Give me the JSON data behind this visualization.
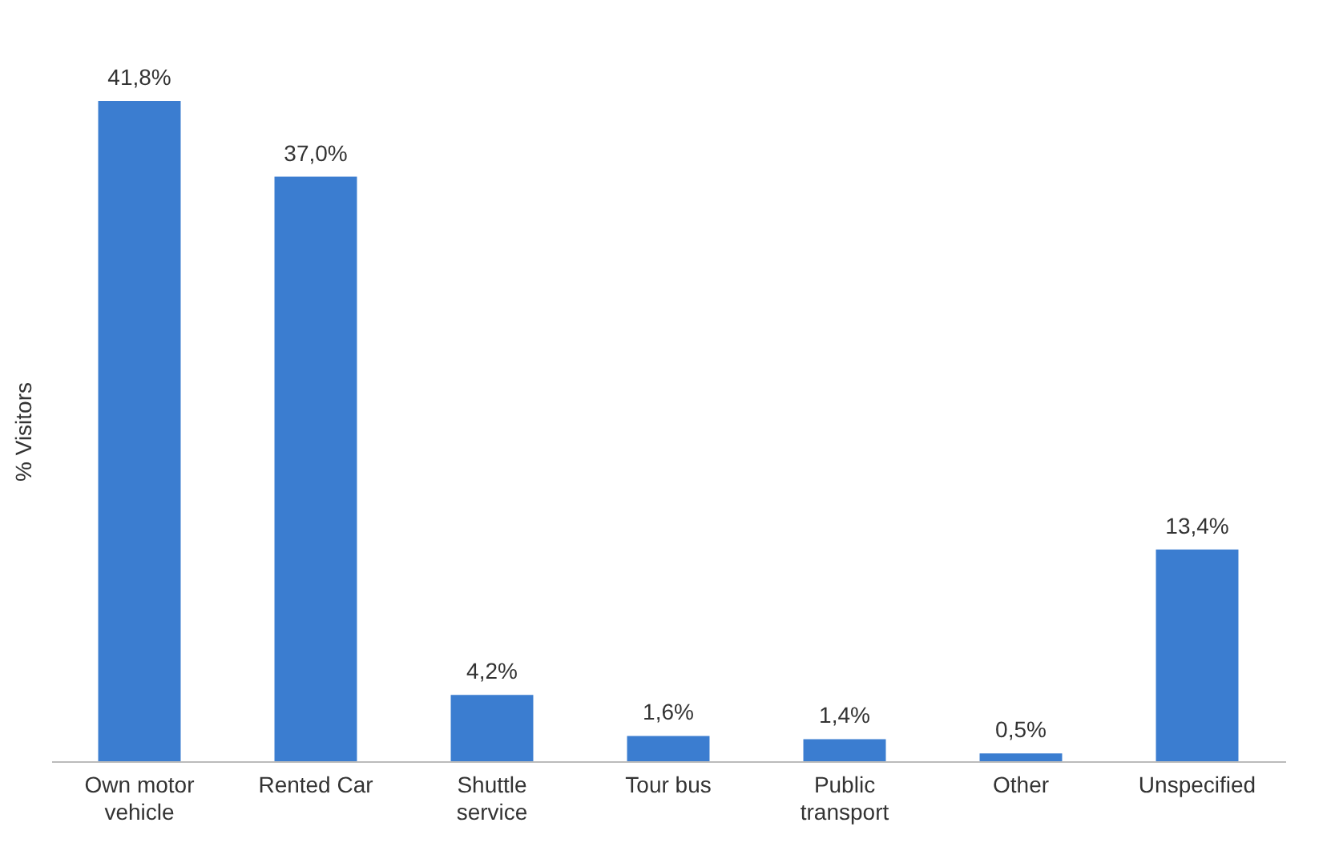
{
  "chart_data": {
    "type": "bar",
    "ylabel": "% Visitors",
    "categories": [
      "Own motor vehicle",
      "Rented Car",
      "Shuttle service",
      "Tour bus",
      "Public transport",
      "Other",
      "Unspecified"
    ],
    "values": [
      41.8,
      37.0,
      4.2,
      1.6,
      1.4,
      0.5,
      13.4
    ],
    "value_labels": [
      "41,8%",
      "37,0%",
      "4,2%",
      "1,6%",
      "1,4%",
      "0,5%",
      "13,4%"
    ],
    "color": "#3b7dd0",
    "grid": false
  }
}
